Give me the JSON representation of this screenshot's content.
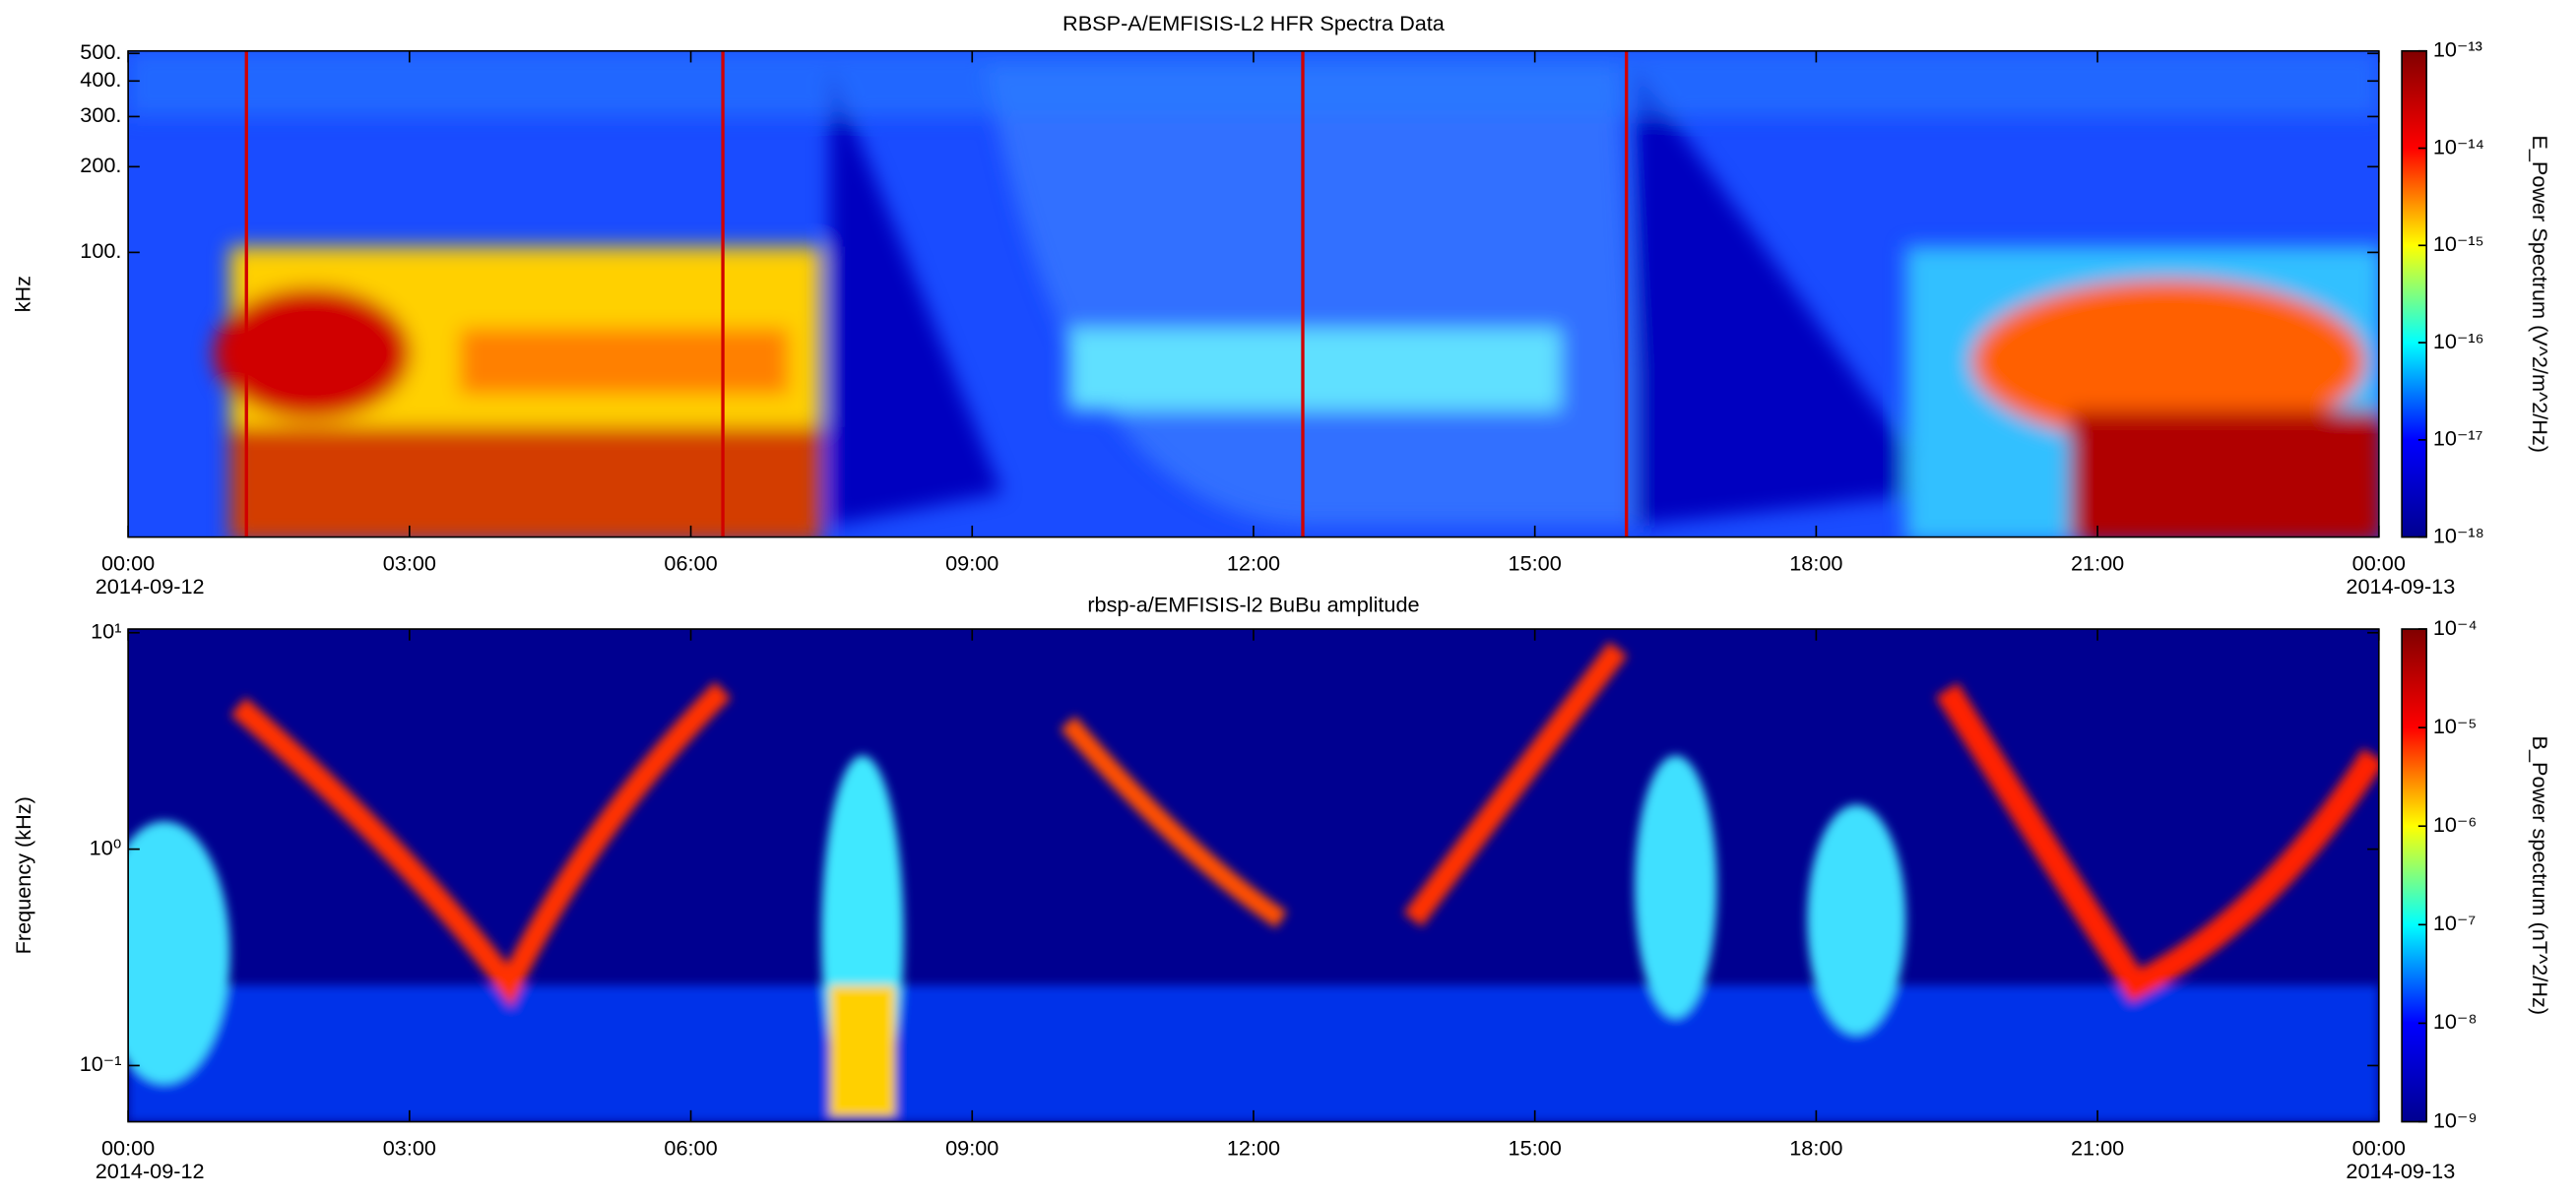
{
  "chart_data": [
    {
      "type": "spectrogram",
      "title": "RBSP-A/EMFISIS-L2  HFR Spectra Data",
      "ylabel": "kHz",
      "xlim": [
        0,
        24
      ],
      "xticks": [
        {
          "value": 0,
          "label": "00:00"
        },
        {
          "value": 3,
          "label": "03:00"
        },
        {
          "value": 6,
          "label": "06:00"
        },
        {
          "value": 9,
          "label": "09:00"
        },
        {
          "value": 12,
          "label": "12:00"
        },
        {
          "value": 15,
          "label": "15:00"
        },
        {
          "value": 18,
          "label": "18:00"
        },
        {
          "value": 21,
          "label": "21:00"
        },
        {
          "value": 24,
          "label": "00:00"
        }
      ],
      "start_date": "2014-09-12",
      "end_date": "2014-09-13",
      "ylim": [
        10,
        510
      ],
      "yscale": "log",
      "yticks": [
        {
          "value": 100,
          "label": "100."
        },
        {
          "value": 200,
          "label": "200."
        },
        {
          "value": 300,
          "label": "300."
        },
        {
          "value": 400,
          "label": "400."
        },
        {
          "value": 500,
          "label": "500."
        }
      ],
      "colorbar": {
        "label": "E_Power Spectrum (V^2/m^2/Hz)",
        "scale": "log",
        "lim": [
          1e-18,
          1e-13
        ],
        "ticks": [
          {
            "value": 1e-18,
            "label": "10⁻¹⁸"
          },
          {
            "value": 1e-17,
            "label": "10⁻¹⁷"
          },
          {
            "value": 1e-16,
            "label": "10⁻¹⁶"
          },
          {
            "value": 1e-15,
            "label": "10⁻¹⁵"
          },
          {
            "value": 1e-14,
            "label": "10⁻¹⁴"
          },
          {
            "value": 1e-13,
            "label": "10⁻¹³"
          }
        ],
        "colormap": [
          "#00008f",
          "#0000ff",
          "#00ffff",
          "#ffff00",
          "#ff0000",
          "#800000"
        ]
      }
    },
    {
      "type": "spectrogram",
      "title": "rbsp-a/EMFISIS-l2  BuBu amplitude",
      "ylabel": "Frequency (kHz)",
      "xlim": [
        0,
        24
      ],
      "xticks": [
        {
          "value": 0,
          "label": "00:00"
        },
        {
          "value": 3,
          "label": "03:00"
        },
        {
          "value": 6,
          "label": "06:00"
        },
        {
          "value": 9,
          "label": "09:00"
        },
        {
          "value": 12,
          "label": "12:00"
        },
        {
          "value": 15,
          "label": "15:00"
        },
        {
          "value": 18,
          "label": "18:00"
        },
        {
          "value": 21,
          "label": "21:00"
        },
        {
          "value": 24,
          "label": "00:00"
        }
      ],
      "start_date": "2014-09-12",
      "end_date": "2014-09-13",
      "ylim": [
        0.055,
        10.4
      ],
      "yscale": "log",
      "yticks": [
        {
          "value": 0.1,
          "label": "10⁻¹"
        },
        {
          "value": 1,
          "label": "10⁰"
        },
        {
          "value": 10,
          "label": "10¹"
        }
      ],
      "colorbar": {
        "label": "B_Power spectrum (nT^2/Hz)",
        "scale": "log",
        "lim": [
          1e-09,
          0.0001
        ],
        "ticks": [
          {
            "value": 1e-09,
            "label": "10⁻⁹"
          },
          {
            "value": 1e-08,
            "label": "10⁻⁸"
          },
          {
            "value": 1e-07,
            "label": "10⁻⁷"
          },
          {
            "value": 1e-06,
            "label": "10⁻⁶"
          },
          {
            "value": 1e-05,
            "label": "10⁻⁵"
          },
          {
            "value": 0.0001,
            "label": "10⁻⁴"
          }
        ],
        "colormap": [
          "#00008f",
          "#0000ff",
          "#00ffff",
          "#ffff00",
          "#ff0000",
          "#800000"
        ]
      }
    }
  ]
}
